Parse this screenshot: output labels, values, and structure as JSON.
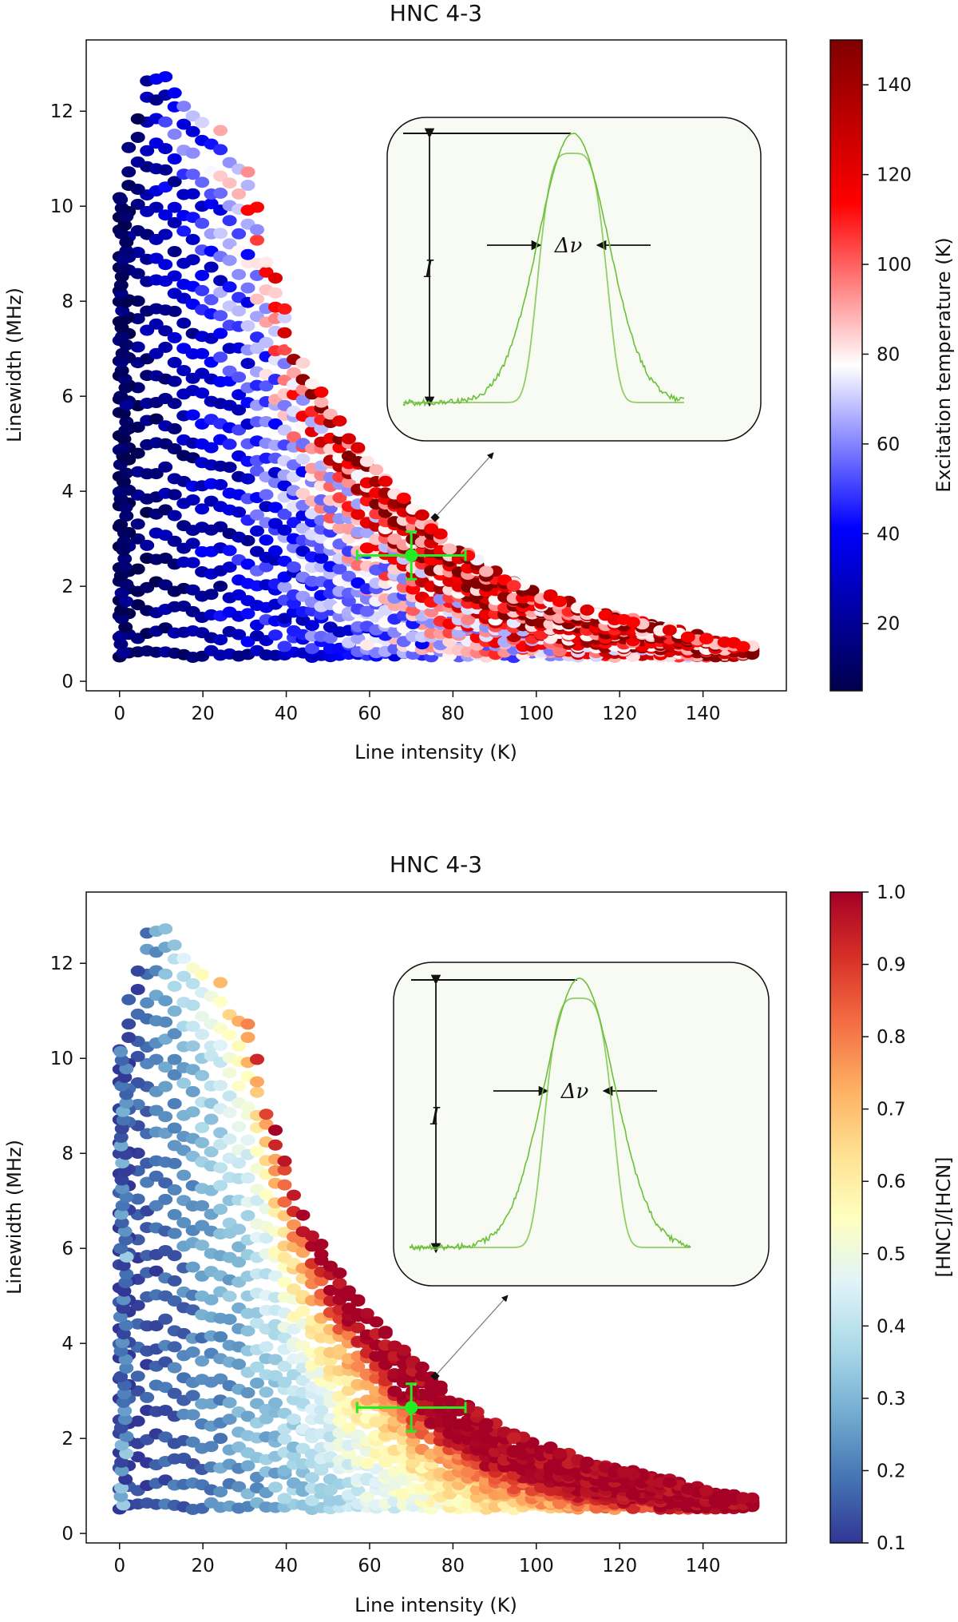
{
  "chart_data": [
    {
      "type": "scatter",
      "title": "HNC 4-3",
      "xlabel": "Line intensity (K)",
      "ylabel": "Linewidth (MHz)",
      "xlim": [
        -8,
        160
      ],
      "ylim": [
        -0.2,
        13.5
      ],
      "xticks": [
        0,
        20,
        40,
        60,
        80,
        100,
        120,
        140
      ],
      "yticks": [
        0,
        2,
        4,
        6,
        8,
        10,
        12
      ],
      "colorbar": {
        "label": "Excitation temperature (K)",
        "range": [
          5,
          150
        ],
        "ticks": [
          20,
          40,
          60,
          80,
          100,
          120,
          140
        ],
        "colormap": "seismic",
        "colors": [
          "#00004c",
          "#0000ff",
          "#ffffff",
          "#ff0000",
          "#800000"
        ]
      },
      "envelope": [
        [
          0,
          10.2
        ],
        [
          2,
          11.6
        ],
        [
          4,
          12.2
        ],
        [
          7,
          12.8
        ],
        [
          11,
          12.8
        ],
        [
          15,
          12.2
        ],
        [
          20,
          11.8
        ],
        [
          25,
          11.6
        ],
        [
          30,
          11.0
        ],
        [
          33,
          10.0
        ],
        [
          36,
          9.0
        ],
        [
          40,
          7.8
        ],
        [
          45,
          6.6
        ],
        [
          55,
          5.2
        ],
        [
          65,
          4.2
        ],
        [
          75,
          3.3
        ],
        [
          85,
          2.6
        ],
        [
          95,
          2.1
        ],
        [
          105,
          1.8
        ],
        [
          115,
          1.45
        ],
        [
          128,
          1.25
        ],
        [
          140,
          0.95
        ],
        [
          151,
          0.75
        ]
      ],
      "marker": {
        "x": 70,
        "y": 2.65,
        "xerr": 13,
        "yerr": 0.5,
        "color": "#22ee22"
      },
      "inset": {
        "I_label": "I",
        "dv_label": "Δν",
        "curve_color": "#6dbf3a"
      }
    },
    {
      "type": "scatter",
      "title": "HNC 4-3",
      "xlabel": "Line intensity (K)",
      "ylabel": "Linewidth (MHz)",
      "xlim": [
        -8,
        160
      ],
      "ylim": [
        -0.2,
        13.5
      ],
      "xticks": [
        0,
        20,
        40,
        60,
        80,
        100,
        120,
        140
      ],
      "yticks": [
        0,
        2,
        4,
        6,
        8,
        10,
        12
      ],
      "colorbar": {
        "label": "[HNC]/[HCN]",
        "range": [
          0.1,
          1.0
        ],
        "ticks": [
          0.1,
          0.2,
          0.3,
          0.4,
          0.5,
          0.6,
          0.7,
          0.8,
          0.9,
          1.0
        ],
        "colormap": "RdYlBu_r",
        "colors": [
          "#313695",
          "#4575b4",
          "#74add1",
          "#abd9e9",
          "#e0f3f8",
          "#ffffbf",
          "#fee090",
          "#fdae61",
          "#f46d43",
          "#d73027",
          "#a50026"
        ]
      },
      "envelope": [
        [
          0,
          10.2
        ],
        [
          2,
          11.6
        ],
        [
          4,
          12.2
        ],
        [
          7,
          12.8
        ],
        [
          11,
          12.8
        ],
        [
          15,
          12.2
        ],
        [
          20,
          11.8
        ],
        [
          25,
          11.6
        ],
        [
          30,
          11.0
        ],
        [
          33,
          10.0
        ],
        [
          36,
          9.0
        ],
        [
          40,
          7.8
        ],
        [
          45,
          6.6
        ],
        [
          55,
          5.2
        ],
        [
          65,
          4.2
        ],
        [
          75,
          3.3
        ],
        [
          85,
          2.6
        ],
        [
          95,
          2.1
        ],
        [
          105,
          1.8
        ],
        [
          115,
          1.45
        ],
        [
          128,
          1.25
        ],
        [
          140,
          0.95
        ],
        [
          151,
          0.75
        ]
      ],
      "marker": {
        "x": 70,
        "y": 2.65,
        "xerr": 13,
        "yerr": 0.5,
        "color": "#22ee22"
      },
      "inset": {
        "I_label": "I",
        "dv_label": "Δν",
        "curve_color": "#6dbf3a"
      }
    }
  ]
}
